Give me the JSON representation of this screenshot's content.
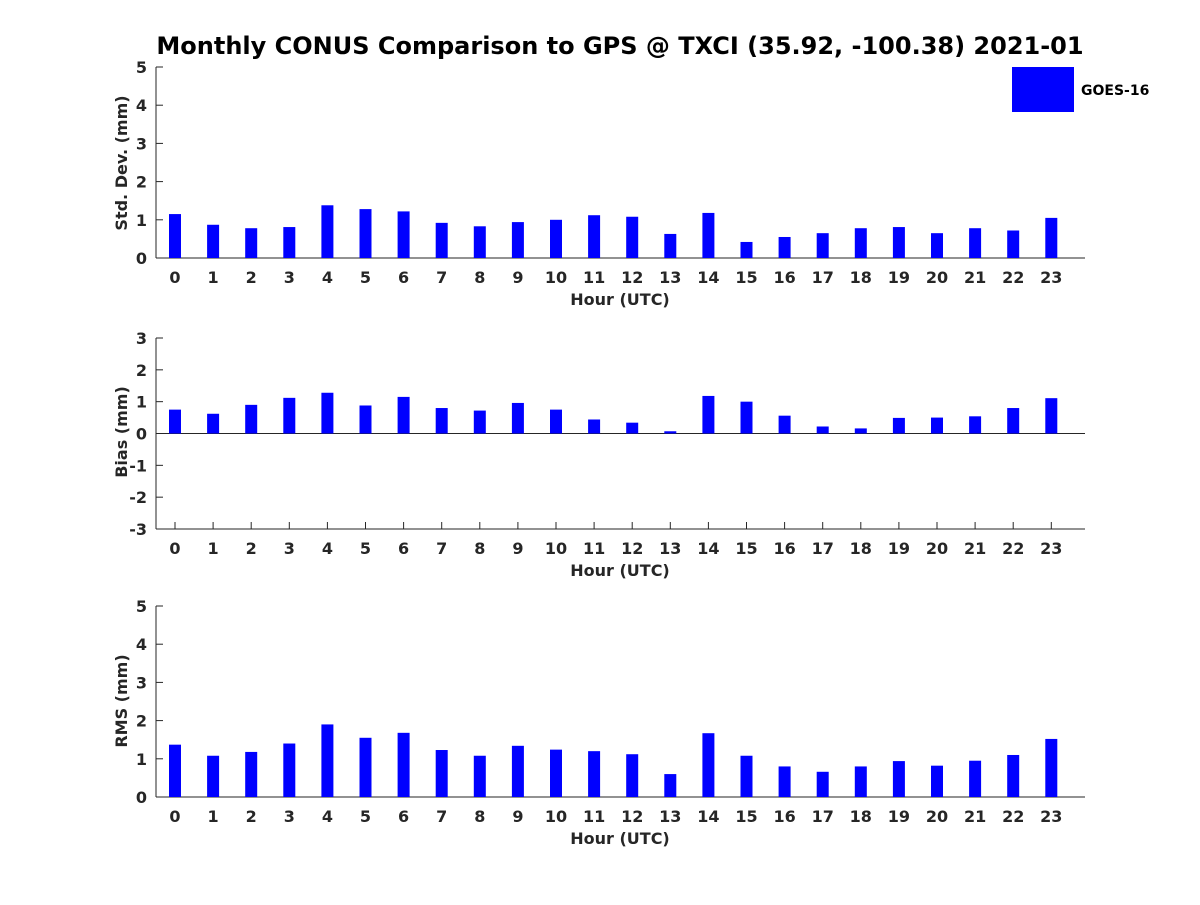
{
  "title": "Monthly CONUS Comparison to GPS @ TXCI (35.92, -100.38) 2021-01",
  "legend": {
    "label": "GOES-16",
    "color": "#0000ff"
  },
  "chart_data": [
    {
      "type": "bar",
      "xlabel": "Hour (UTC)",
      "ylabel": "Std. Dev. (mm)",
      "ylim": [
        0,
        5
      ],
      "yticks": [
        "0",
        "1",
        "2",
        "3",
        "4",
        "5"
      ],
      "categories": [
        "0",
        "1",
        "2",
        "3",
        "4",
        "5",
        "6",
        "7",
        "8",
        "9",
        "10",
        "11",
        "12",
        "13",
        "14",
        "15",
        "16",
        "17",
        "18",
        "19",
        "20",
        "21",
        "22",
        "23"
      ],
      "series": [
        {
          "name": "GOES-16",
          "values": [
            1.15,
            0.87,
            0.78,
            0.81,
            1.38,
            1.28,
            1.22,
            0.92,
            0.83,
            0.94,
            1.0,
            1.12,
            1.08,
            0.63,
            1.18,
            0.42,
            0.55,
            0.65,
            0.78,
            0.81,
            0.65,
            0.78,
            0.72,
            1.05
          ]
        }
      ]
    },
    {
      "type": "bar",
      "xlabel": "Hour (UTC)",
      "ylabel": "Bias (mm)",
      "ylim": [
        -3,
        3
      ],
      "yticks": [
        "-3",
        "-2",
        "-1",
        "0",
        "1",
        "2",
        "3"
      ],
      "categories": [
        "0",
        "1",
        "2",
        "3",
        "4",
        "5",
        "6",
        "7",
        "8",
        "9",
        "10",
        "11",
        "12",
        "13",
        "14",
        "15",
        "16",
        "17",
        "18",
        "19",
        "20",
        "21",
        "22",
        "23"
      ],
      "series": [
        {
          "name": "GOES-16",
          "values": [
            0.75,
            0.62,
            0.9,
            1.12,
            1.28,
            0.88,
            1.15,
            0.8,
            0.72,
            0.96,
            0.75,
            0.44,
            0.34,
            0.07,
            1.18,
            1.0,
            0.56,
            0.22,
            0.16,
            0.49,
            0.5,
            0.54,
            0.8,
            1.11
          ]
        }
      ]
    },
    {
      "type": "bar",
      "xlabel": "Hour (UTC)",
      "ylabel": "RMS (mm)",
      "ylim": [
        0,
        5
      ],
      "yticks": [
        "0",
        "1",
        "2",
        "3",
        "4",
        "5"
      ],
      "categories": [
        "0",
        "1",
        "2",
        "3",
        "4",
        "5",
        "6",
        "7",
        "8",
        "9",
        "10",
        "11",
        "12",
        "13",
        "14",
        "15",
        "16",
        "17",
        "18",
        "19",
        "20",
        "21",
        "22",
        "23"
      ],
      "series": [
        {
          "name": "GOES-16",
          "values": [
            1.37,
            1.08,
            1.18,
            1.4,
            1.9,
            1.55,
            1.68,
            1.23,
            1.08,
            1.34,
            1.24,
            1.2,
            1.12,
            0.6,
            1.67,
            1.08,
            0.8,
            0.66,
            0.8,
            0.94,
            0.82,
            0.95,
            1.1,
            1.52
          ]
        }
      ]
    }
  ]
}
